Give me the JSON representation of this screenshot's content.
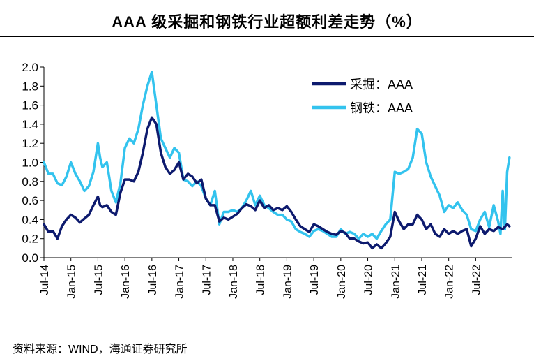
{
  "chart_data": {
    "type": "line",
    "title": "AAA 级采掘和钢铁行业超额利差走势（%）",
    "source": "资料来源：WIND，海通证券研究所",
    "xlabel": "",
    "ylabel": "",
    "ylim": [
      0,
      2.0
    ],
    "yticks": [
      "0.0",
      "0.2",
      "0.4",
      "0.6",
      "0.8",
      "1.0",
      "1.2",
      "1.4",
      "1.6",
      "1.8",
      "2.0"
    ],
    "xlim": [
      0,
      104
    ],
    "xtick_labels": [
      "Jul-14",
      "Jan-15",
      "Jul-15",
      "Jan-16",
      "Jul-16",
      "Jan-17",
      "Jul-17",
      "Jan-18",
      "Jul-18",
      "Jan-19",
      "Jul-19",
      "Jan-20",
      "Jul-20",
      "Jan-21",
      "Jul-21",
      "Jan-22",
      "Jul-22"
    ],
    "xtick_months": [
      0,
      6,
      12,
      18,
      24,
      30,
      36,
      42,
      48,
      54,
      60,
      66,
      72,
      78,
      84,
      90,
      96
    ],
    "legend_position": "top-right",
    "series": [
      {
        "name": "采掘：AAA",
        "color": "#0d1a6e",
        "points": [
          [
            0,
            0.35
          ],
          [
            1,
            0.27
          ],
          [
            2,
            0.28
          ],
          [
            3,
            0.2
          ],
          [
            4,
            0.33
          ],
          [
            5,
            0.4
          ],
          [
            6,
            0.45
          ],
          [
            7,
            0.42
          ],
          [
            8,
            0.37
          ],
          [
            9,
            0.41
          ],
          [
            10,
            0.45
          ],
          [
            11,
            0.55
          ],
          [
            12,
            0.64
          ],
          [
            12.5,
            0.55
          ],
          [
            13,
            0.53
          ],
          [
            14,
            0.55
          ],
          [
            15,
            0.48
          ],
          [
            16,
            0.45
          ],
          [
            17,
            0.68
          ],
          [
            18,
            0.82
          ],
          [
            19,
            0.82
          ],
          [
            20,
            0.8
          ],
          [
            21,
            0.9
          ],
          [
            22,
            1.1
          ],
          [
            23,
            1.35
          ],
          [
            24,
            1.47
          ],
          [
            25,
            1.4
          ],
          [
            26,
            1.1
          ],
          [
            27,
            0.95
          ],
          [
            28,
            0.88
          ],
          [
            29,
            0.92
          ],
          [
            30,
            1.0
          ],
          [
            31,
            0.82
          ],
          [
            32,
            0.88
          ],
          [
            33,
            0.85
          ],
          [
            34,
            0.78
          ],
          [
            35,
            0.82
          ],
          [
            36,
            0.62
          ],
          [
            37,
            0.55
          ],
          [
            38,
            0.55
          ],
          [
            39,
            0.38
          ],
          [
            40,
            0.42
          ],
          [
            41,
            0.4
          ],
          [
            42,
            0.43
          ],
          [
            43,
            0.46
          ],
          [
            44,
            0.52
          ],
          [
            45,
            0.56
          ],
          [
            46,
            0.54
          ],
          [
            47,
            0.5
          ],
          [
            48,
            0.6
          ],
          [
            49,
            0.52
          ],
          [
            50,
            0.55
          ],
          [
            51,
            0.5
          ],
          [
            52,
            0.52
          ],
          [
            53,
            0.5
          ],
          [
            54,
            0.54
          ],
          [
            55,
            0.48
          ],
          [
            56,
            0.4
          ],
          [
            57,
            0.33
          ],
          [
            58,
            0.3
          ],
          [
            59,
            0.27
          ],
          [
            60,
            0.35
          ],
          [
            61,
            0.33
          ],
          [
            62,
            0.3
          ],
          [
            63,
            0.27
          ],
          [
            64,
            0.25
          ],
          [
            65,
            0.24
          ],
          [
            66,
            0.28
          ],
          [
            67,
            0.26
          ],
          [
            68,
            0.2
          ],
          [
            69,
            0.2
          ],
          [
            70,
            0.17
          ],
          [
            71,
            0.15
          ],
          [
            72,
            0.16
          ],
          [
            73,
            0.1
          ],
          [
            74,
            0.14
          ],
          [
            75,
            0.1
          ],
          [
            76,
            0.15
          ],
          [
            77,
            0.22
          ],
          [
            78,
            0.48
          ],
          [
            79,
            0.38
          ],
          [
            80,
            0.3
          ],
          [
            81,
            0.35
          ],
          [
            82,
            0.35
          ],
          [
            83,
            0.45
          ],
          [
            84,
            0.4
          ],
          [
            85,
            0.3
          ],
          [
            86,
            0.35
          ],
          [
            87,
            0.25
          ],
          [
            88,
            0.22
          ],
          [
            89,
            0.3
          ],
          [
            90,
            0.25
          ],
          [
            91,
            0.28
          ],
          [
            92,
            0.25
          ],
          [
            93,
            0.28
          ],
          [
            94,
            0.3
          ],
          [
            95,
            0.12
          ],
          [
            96,
            0.2
          ],
          [
            97,
            0.33
          ],
          [
            98,
            0.25
          ],
          [
            99,
            0.3
          ],
          [
            100,
            0.28
          ],
          [
            101,
            0.32
          ],
          [
            102,
            0.3
          ],
          [
            103,
            0.35
          ],
          [
            103.5,
            0.33
          ]
        ]
      },
      {
        "name": "钢铁：AAA",
        "color": "#33c3ee",
        "points": [
          [
            0,
            1.0
          ],
          [
            1,
            0.88
          ],
          [
            2,
            0.88
          ],
          [
            3,
            0.78
          ],
          [
            4,
            0.76
          ],
          [
            5,
            0.85
          ],
          [
            6,
            1.0
          ],
          [
            7,
            0.88
          ],
          [
            8,
            0.8
          ],
          [
            9,
            0.7
          ],
          [
            10,
            0.75
          ],
          [
            11,
            0.9
          ],
          [
            12,
            1.2
          ],
          [
            12.5,
            1.05
          ],
          [
            13,
            0.95
          ],
          [
            14,
            1.0
          ],
          [
            15,
            0.7
          ],
          [
            16,
            0.58
          ],
          [
            17,
            0.78
          ],
          [
            18,
            1.15
          ],
          [
            19,
            1.25
          ],
          [
            20,
            1.2
          ],
          [
            21,
            1.35
          ],
          [
            22,
            1.6
          ],
          [
            23,
            1.8
          ],
          [
            24,
            1.95
          ],
          [
            25,
            1.6
          ],
          [
            26,
            1.25
          ],
          [
            27,
            1.15
          ],
          [
            28,
            1.05
          ],
          [
            29,
            1.15
          ],
          [
            30,
            1.1
          ],
          [
            31,
            0.82
          ],
          [
            32,
            0.8
          ],
          [
            33,
            0.75
          ],
          [
            34,
            0.8
          ],
          [
            35,
            0.75
          ],
          [
            36,
            0.62
          ],
          [
            37,
            0.55
          ],
          [
            38,
            0.7
          ],
          [
            39,
            0.35
          ],
          [
            40,
            0.48
          ],
          [
            41,
            0.48
          ],
          [
            42,
            0.5
          ],
          [
            43,
            0.48
          ],
          [
            44,
            0.52
          ],
          [
            45,
            0.6
          ],
          [
            46,
            0.7
          ],
          [
            47,
            0.55
          ],
          [
            48,
            0.65
          ],
          [
            49,
            0.55
          ],
          [
            50,
            0.52
          ],
          [
            51,
            0.48
          ],
          [
            52,
            0.45
          ],
          [
            53,
            0.45
          ],
          [
            54,
            0.4
          ],
          [
            55,
            0.38
          ],
          [
            56,
            0.3
          ],
          [
            57,
            0.27
          ],
          [
            58,
            0.25
          ],
          [
            59,
            0.22
          ],
          [
            60,
            0.28
          ],
          [
            61,
            0.3
          ],
          [
            62,
            0.28
          ],
          [
            63,
            0.25
          ],
          [
            64,
            0.22
          ],
          [
            65,
            0.22
          ],
          [
            66,
            0.3
          ],
          [
            67,
            0.25
          ],
          [
            68,
            0.27
          ],
          [
            69,
            0.25
          ],
          [
            70,
            0.2
          ],
          [
            71,
            0.25
          ],
          [
            72,
            0.22
          ],
          [
            73,
            0.25
          ],
          [
            74,
            0.2
          ],
          [
            75,
            0.28
          ],
          [
            76,
            0.35
          ],
          [
            77,
            0.4
          ],
          [
            78,
            0.9
          ],
          [
            79,
            0.88
          ],
          [
            80,
            0.9
          ],
          [
            81,
            0.93
          ],
          [
            82,
            1.05
          ],
          [
            83,
            1.35
          ],
          [
            84,
            1.3
          ],
          [
            85,
            1.0
          ],
          [
            86,
            0.85
          ],
          [
            87,
            0.75
          ],
          [
            88,
            0.65
          ],
          [
            89,
            0.48
          ],
          [
            90,
            0.55
          ],
          [
            91,
            0.52
          ],
          [
            92,
            0.58
          ],
          [
            93,
            0.5
          ],
          [
            94,
            0.45
          ],
          [
            95,
            0.3
          ],
          [
            96,
            0.28
          ],
          [
            97,
            0.4
          ],
          [
            98,
            0.48
          ],
          [
            99,
            0.32
          ],
          [
            100,
            0.55
          ],
          [
            101,
            0.38
          ],
          [
            101.5,
            0.25
          ],
          [
            102,
            0.7
          ],
          [
            102.5,
            0.3
          ],
          [
            103,
            0.9
          ],
          [
            103.5,
            1.05
          ]
        ]
      }
    ]
  }
}
